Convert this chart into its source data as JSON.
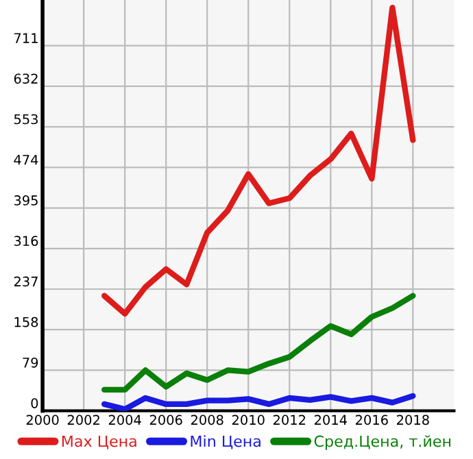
{
  "chart_data": {
    "type": "line",
    "x": [
      2003,
      2004,
      2005,
      2006,
      2007,
      2008,
      2009,
      2010,
      2011,
      2012,
      2013,
      2014,
      2015,
      2016,
      2017,
      2018
    ],
    "series": [
      {
        "name": "Max Цена",
        "color": "#dd1c1c",
        "values": [
          224,
          189,
          241,
          276,
          246,
          347,
          390,
          461,
          404,
          414,
          458,
          490,
          540,
          452,
          785,
          527
        ]
      },
      {
        "name": "Min Цена",
        "color": "#1a1ae0",
        "values": [
          13,
          3,
          25,
          13,
          13,
          20,
          20,
          23,
          13,
          25,
          21,
          27,
          19,
          25,
          16,
          29
        ]
      },
      {
        "name": "Сред.Цена, т.йен",
        "color": "#0a800a",
        "values": [
          41,
          41,
          79,
          47,
          73,
          60,
          79,
          76,
          92,
          105,
          136,
          165,
          149,
          183,
          200,
          224
        ]
      }
    ],
    "xlim": [
      2000,
      2020
    ],
    "ylim": [
      0,
      800
    ],
    "xticks": [
      2000,
      2002,
      2004,
      2006,
      2008,
      2010,
      2012,
      2014,
      2016,
      2018
    ],
    "yticks": [
      0,
      79,
      158,
      237,
      316,
      395,
      474,
      553,
      632,
      711
    ],
    "grid": true,
    "legend": "bottom",
    "marker": "none",
    "line_style": "solid"
  }
}
